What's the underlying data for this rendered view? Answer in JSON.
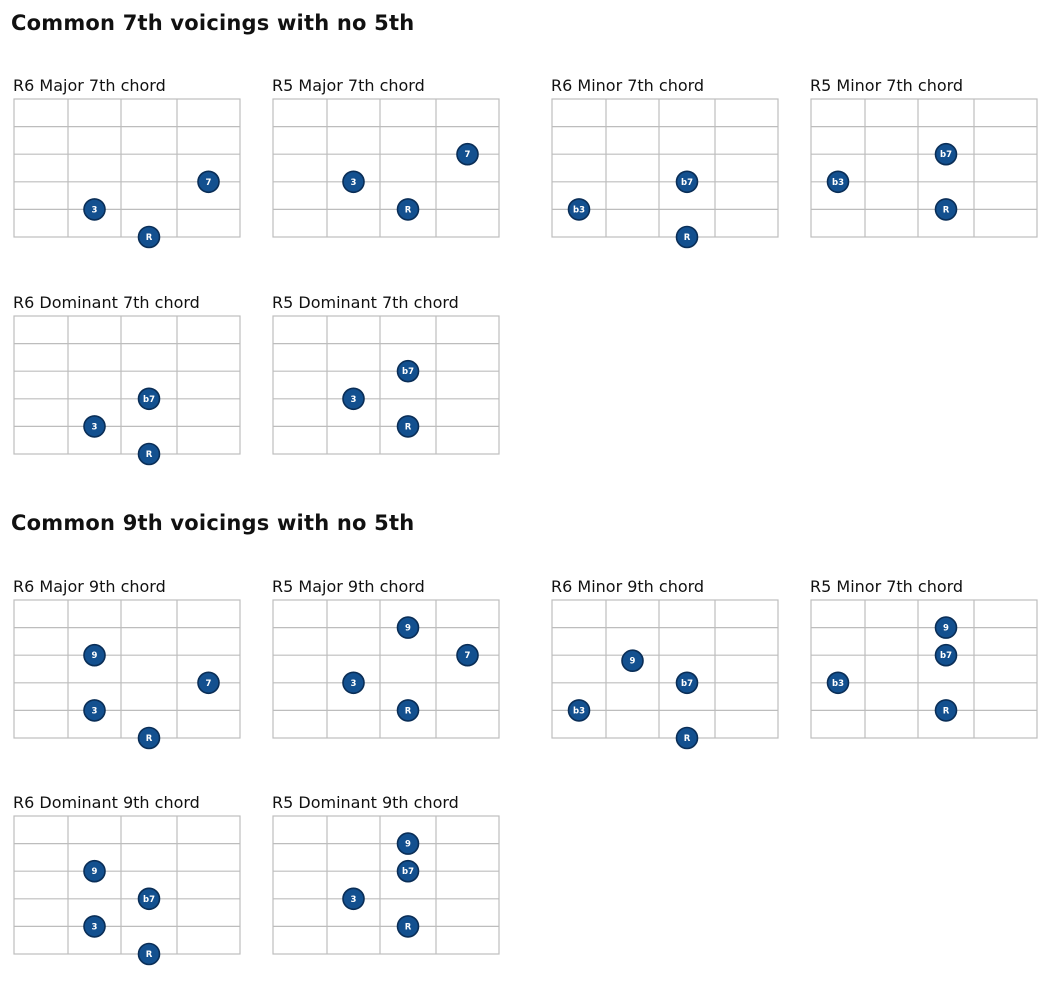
{
  "sections": [
    {
      "title": "Common 7th voicings with no 5th",
      "chords": [
        {
          "title": "R6 Major 7th chord",
          "notes": [
            {
              "label": "7",
              "string": 3,
              "fret": 3.5
            },
            {
              "label": "3",
              "string": 4,
              "fret": 1.5
            },
            {
              "label": "R",
              "string": 5,
              "fret": 2.5
            }
          ]
        },
        {
          "title": "R5 Major 7th chord",
          "notes": [
            {
              "label": "7",
              "string": 2,
              "fret": 3.5
            },
            {
              "label": "3",
              "string": 3,
              "fret": 1.5
            },
            {
              "label": "R",
              "string": 4,
              "fret": 2.5
            }
          ]
        },
        {
          "title": "R6 Minor 7th chord",
          "notes": [
            {
              "label": "b7",
              "string": 3,
              "fret": 2.5
            },
            {
              "label": "b3",
              "string": 4,
              "fret": 0.5
            },
            {
              "label": "R",
              "string": 5,
              "fret": 2.5
            }
          ]
        },
        {
          "title": "R5 Minor 7th chord",
          "notes": [
            {
              "label": "b7",
              "string": 2,
              "fret": 2.5
            },
            {
              "label": "b3",
              "string": 3,
              "fret": 0.5
            },
            {
              "label": "R",
              "string": 4,
              "fret": 2.5
            }
          ]
        },
        {
          "title": "R6 Dominant 7th chord",
          "notes": [
            {
              "label": "b7",
              "string": 3,
              "fret": 2.5
            },
            {
              "label": "3",
              "string": 4,
              "fret": 1.5
            },
            {
              "label": "R",
              "string": 5,
              "fret": 2.5
            }
          ]
        },
        {
          "title": "R5 Dominant 7th chord",
          "notes": [
            {
              "label": "b7",
              "string": 2,
              "fret": 2.5
            },
            {
              "label": "3",
              "string": 3,
              "fret": 1.5
            },
            {
              "label": "R",
              "string": 4,
              "fret": 2.5
            }
          ]
        }
      ]
    },
    {
      "title": "Common 9th voicings with no 5th",
      "chords": [
        {
          "title": "R6 Major 9th chord",
          "notes": [
            {
              "label": "9",
              "string": 2,
              "fret": 1.5
            },
            {
              "label": "7",
              "string": 3,
              "fret": 3.5
            },
            {
              "label": "3",
              "string": 4,
              "fret": 1.5
            },
            {
              "label": "R",
              "string": 5,
              "fret": 2.5
            }
          ]
        },
        {
          "title": "R5 Major 9th chord",
          "notes": [
            {
              "label": "9",
              "string": 1,
              "fret": 2.5
            },
            {
              "label": "7",
              "string": 2,
              "fret": 3.5
            },
            {
              "label": "3",
              "string": 3,
              "fret": 1.5
            },
            {
              "label": "R",
              "string": 4,
              "fret": 2.5
            }
          ]
        },
        {
          "title": "R6 Minor 9th chord",
          "notes": [
            {
              "label": "9",
              "string": 2.2,
              "fret": 1.5
            },
            {
              "label": "b7",
              "string": 3,
              "fret": 2.5
            },
            {
              "label": "b3",
              "string": 4,
              "fret": 0.5
            },
            {
              "label": "R",
              "string": 5,
              "fret": 2.5
            }
          ]
        },
        {
          "title": "R5 Minor 7th chord",
          "notes": [
            {
              "label": "9",
              "string": 1,
              "fret": 2.5
            },
            {
              "label": "b7",
              "string": 2,
              "fret": 2.5
            },
            {
              "label": "b3",
              "string": 3,
              "fret": 0.5
            },
            {
              "label": "R",
              "string": 4,
              "fret": 2.5
            }
          ]
        },
        {
          "title": "R6 Dominant 9th chord",
          "notes": [
            {
              "label": "9",
              "string": 2,
              "fret": 1.5
            },
            {
              "label": "b7",
              "string": 3,
              "fret": 2.5
            },
            {
              "label": "3",
              "string": 4,
              "fret": 1.5
            },
            {
              "label": "R",
              "string": 5,
              "fret": 2.5
            }
          ]
        },
        {
          "title": "R5 Dominant 9th chord",
          "notes": [
            {
              "label": "9",
              "string": 1,
              "fret": 2.5
            },
            {
              "label": "b7",
              "string": 2,
              "fret": 2.5
            },
            {
              "label": "3",
              "string": 3,
              "fret": 1.5
            },
            {
              "label": "R",
              "string": 4,
              "fret": 2.5
            }
          ]
        }
      ]
    }
  ],
  "colors": {
    "dot": "#13508f",
    "dot_stroke": "#0a2e57",
    "grid": "#bdbdbd"
  }
}
